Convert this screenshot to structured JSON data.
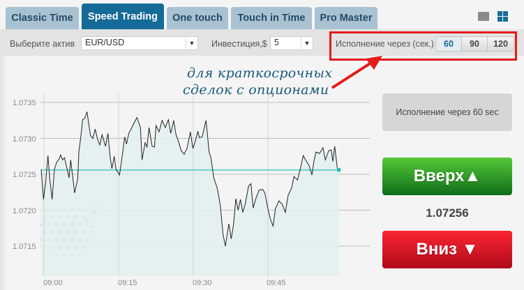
{
  "tabs": [
    {
      "label": "Classic Time"
    },
    {
      "label": "Speed Trading",
      "active": true
    },
    {
      "label": "One touch"
    },
    {
      "label": "Touch in Time"
    },
    {
      "label": "Pro Master"
    }
  ],
  "view_icons": [
    "single-view-icon",
    "grid-view-icon"
  ],
  "toolbar": {
    "asset_label": "Выберите актив",
    "asset_value": "EUR/USD",
    "investment_label": "Инвестиция,$",
    "investment_value": "5",
    "expiry_label": "Исполнение через (сек.)",
    "expiry_options": [
      "60",
      "90",
      "120"
    ],
    "expiry_selected": "60"
  },
  "annotation": {
    "line1": "для краткосрочных",
    "line2": "сделок с опционами",
    "color": "#e41b1b"
  },
  "panel": {
    "info": "Исполнение через 60 sec",
    "up_label": "Вверх",
    "down_label": "Вниз",
    "price": "1.07256",
    "up_color": "#2e9a26",
    "down_color": "#e0141f"
  },
  "chart_data": {
    "type": "area",
    "y_ticks": [
      "1.0735",
      "1.0730",
      "1.0725",
      "1.0720",
      "1.0715"
    ],
    "x_ticks": [
      "09:00",
      "09:15",
      "09:30",
      "09:45"
    ],
    "current_price": 1.07256,
    "grid": true,
    "points": [
      [
        "08:59:26",
        1.07257
      ],
      [
        "08:59:55",
        1.07215
      ],
      [
        "09:00:22",
        1.07241
      ],
      [
        "09:00:48",
        1.07276
      ],
      [
        "09:01:10",
        1.07244
      ],
      [
        "09:01:38",
        1.07215
      ],
      [
        "09:02:06",
        1.07257
      ],
      [
        "09:02:34",
        1.07267
      ],
      [
        "09:03:02",
        1.07271
      ],
      [
        "09:03:22",
        1.07277
      ],
      [
        "09:03:44",
        1.0727
      ],
      [
        "09:04:07",
        1.07273
      ],
      [
        "09:04:40",
        1.07257
      ],
      [
        "09:05:03",
        1.07245
      ],
      [
        "09:05:22",
        1.0727
      ],
      [
        "09:06:10",
        1.07224
      ],
      [
        "09:06:47",
        1.07244
      ],
      [
        "09:07:01",
        1.07281
      ],
      [
        "09:07:29",
        1.07307
      ],
      [
        "09:07:45",
        1.07326
      ],
      [
        "09:08:11",
        1.07328
      ],
      [
        "09:08:39",
        1.07337
      ],
      [
        "09:09:21",
        1.07304
      ],
      [
        "09:09:49",
        1.073
      ],
      [
        "09:10:17",
        1.07313
      ],
      [
        "09:10:45",
        1.07299
      ],
      [
        "09:11:13",
        1.07291
      ],
      [
        "09:11:41",
        1.07305
      ],
      [
        "09:12:23",
        1.07289
      ],
      [
        "09:12:51",
        1.07307
      ],
      [
        "09:13:19",
        1.07273
      ],
      [
        "09:13:39",
        1.07258
      ],
      [
        "09:14:07",
        1.07275
      ],
      [
        "09:14:29",
        1.07257
      ],
      [
        "09:15:11",
        1.07249
      ],
      [
        "09:15:47",
        1.07279
      ],
      [
        "09:16:13",
        1.07302
      ],
      [
        "09:16:35",
        1.07292
      ],
      [
        "09:17:03",
        1.07307
      ],
      [
        "09:17:31",
        1.07313
      ],
      [
        "09:17:59",
        1.0732
      ],
      [
        "09:18:41",
        1.07329
      ],
      [
        "09:19:23",
        1.07315
      ],
      [
        "09:19:43",
        1.0727
      ],
      [
        "09:20:20",
        1.07294
      ],
      [
        "09:20:42",
        1.07288
      ],
      [
        "09:21:07",
        1.07315
      ],
      [
        "09:21:44",
        1.07289
      ],
      [
        "09:22:12",
        1.07288
      ],
      [
        "09:22:31",
        1.07318
      ],
      [
        "09:23:08",
        1.07309
      ],
      [
        "09:23:44",
        1.07325
      ],
      [
        "09:24:23",
        1.07315
      ],
      [
        "09:25:00",
        1.07326
      ],
      [
        "09:25:28",
        1.07307
      ],
      [
        "09:26:04",
        1.07325
      ],
      [
        "09:26:32",
        1.07305
      ],
      [
        "09:27:06",
        1.07294
      ],
      [
        "09:27:34",
        1.07283
      ],
      [
        "09:28:11",
        1.07278
      ],
      [
        "09:28:44",
        1.07286
      ],
      [
        "09:29:26",
        1.07309
      ],
      [
        "09:29:55",
        1.07286
      ],
      [
        "09:30:22",
        1.07295
      ],
      [
        "09:30:56",
        1.0731
      ],
      [
        "09:31:13",
        1.07301
      ],
      [
        "09:31:47",
        1.07302
      ],
      [
        "09:32:09",
        1.07313
      ],
      [
        "09:32:34",
        1.07325
      ],
      [
        "09:33:11",
        1.07281
      ],
      [
        "09:33:33",
        1.07273
      ],
      [
        "09:34:07",
        1.07245
      ],
      [
        "09:34:49",
        1.07231
      ],
      [
        "09:35:25",
        1.07208
      ],
      [
        "09:35:59",
        1.07166
      ],
      [
        "09:36:27",
        1.0715
      ],
      [
        "09:37:09",
        1.07181
      ],
      [
        "09:37:37",
        1.0716
      ],
      [
        "09:38:05",
        1.07179
      ],
      [
        "09:38:33",
        1.07216
      ],
      [
        "09:39:01",
        1.072
      ],
      [
        "09:39:29",
        1.07215
      ],
      [
        "09:39:57",
        1.07197
      ],
      [
        "09:40:25",
        1.07208
      ],
      [
        "09:41:07",
        1.07234
      ],
      [
        "09:41:35",
        1.07237
      ],
      [
        "09:42:03",
        1.07203
      ],
      [
        "09:42:31",
        1.07215
      ],
      [
        "09:43:13",
        1.07228
      ],
      [
        "09:43:56",
        1.07229
      ],
      [
        "09:44:23",
        1.07224
      ],
      [
        "09:45:05",
        1.07199
      ],
      [
        "09:45:34",
        1.07186
      ],
      [
        "09:46:02",
        1.07178
      ],
      [
        "09:46:30",
        1.07202
      ],
      [
        "09:47:12",
        1.07213
      ],
      [
        "09:47:54",
        1.07208
      ],
      [
        "09:48:30",
        1.07197
      ],
      [
        "09:49:04",
        1.07221
      ],
      [
        "09:49:46",
        1.07231
      ],
      [
        "09:50:14",
        1.07247
      ],
      [
        "09:50:56",
        1.07242
      ],
      [
        "09:51:24",
        1.07254
      ],
      [
        "09:52:06",
        1.07276
      ],
      [
        "09:52:34",
        1.0727
      ],
      [
        "09:53:16",
        1.07262
      ],
      [
        "09:53:50",
        1.07249
      ],
      [
        "09:54:13",
        1.07267
      ],
      [
        "09:54:40",
        1.07281
      ],
      [
        "09:55:22",
        1.07279
      ],
      [
        "09:56:04",
        1.07287
      ],
      [
        "09:56:32",
        1.0727
      ],
      [
        "09:57:14",
        1.07283
      ],
      [
        "09:57:43",
        1.07284
      ],
      [
        "09:58:02",
        1.07268
      ],
      [
        "09:58:25",
        1.07289
      ],
      [
        "09:58:58",
        1.07257
      ],
      [
        "09:59:15",
        1.07256
      ]
    ],
    "line_color": "#222222",
    "fill_color": "#e2eef0",
    "price_line_color": "#6fd3d0"
  }
}
